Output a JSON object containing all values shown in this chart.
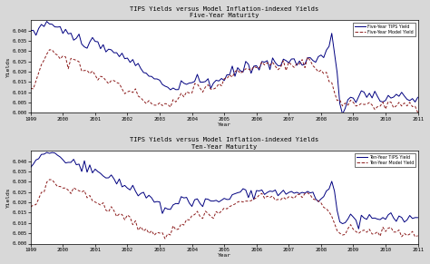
{
  "title1": "TIPS Yields versus Model Inflation-indexed Yields\nFive-Year Maturity",
  "title2": "TIPS Yields versus Model Inflation-indexed Yields\nTen-Year Maturity",
  "xlabel": "Year",
  "ylabel": "Yields",
  "legend1": [
    "Five-Year TIPS Yield",
    "Five-Year Model Yield"
  ],
  "legend2": [
    "Ten-Year TIPS Yield",
    "Ten-Year Model Yield"
  ],
  "tips_color": "#000080",
  "model_color": "#8B1A1A",
  "ylim": [
    0.0,
    0.045
  ],
  "yticks": [
    0.0,
    0.005,
    0.01,
    0.015,
    0.02,
    0.025,
    0.03,
    0.035,
    0.04
  ],
  "xmin": 1999,
  "xmax": 2011,
  "xticks": [
    1999,
    2000,
    2001,
    2002,
    2003,
    2004,
    2005,
    2006,
    2007,
    2008,
    2009,
    2010,
    2011
  ],
  "bg_color": "#ffffff",
  "fig_color": "#d8d8d8"
}
